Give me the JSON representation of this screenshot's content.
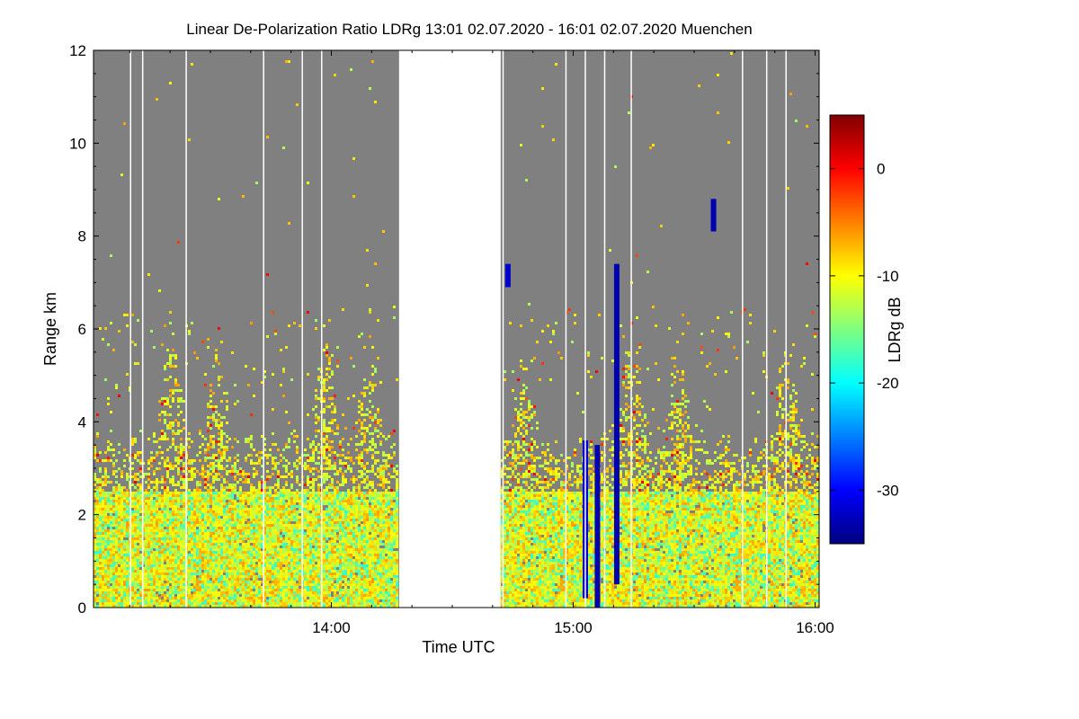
{
  "chart_data": {
    "type": "heatmap",
    "title": "Linear De-Polarization Ratio LDRg   13:01 02.07.2020 - 16:01 02.07.2020 Muenchen",
    "xlabel": "Time UTC",
    "ylabel": "Range km",
    "x_range_hours": [
      13.0167,
      16.0167
    ],
    "y_range_km": [
      0,
      12
    ],
    "x_ticks": [
      {
        "label": "14:00",
        "value": 14.0
      },
      {
        "label": "15:00",
        "value": 15.0
      },
      {
        "label": "16:00",
        "value": 16.0
      }
    ],
    "y_ticks": [
      {
        "label": "0",
        "value": 0
      },
      {
        "label": "2",
        "value": 2
      },
      {
        "label": "4",
        "value": 4
      },
      {
        "label": "6",
        "value": 6
      },
      {
        "label": "8",
        "value": 8
      },
      {
        "label": "10",
        "value": 10
      },
      {
        "label": "12",
        "value": 12
      }
    ],
    "colorbar": {
      "label": "LDRg dB",
      "range": [
        -35,
        5
      ],
      "ticks": [
        {
          "label": "0",
          "value": 0
        },
        {
          "label": "-10",
          "value": -10
        },
        {
          "label": "-20",
          "value": -20
        },
        {
          "label": "-30",
          "value": -30
        }
      ],
      "colormap": [
        "#000080",
        "#0000ff",
        "#0080ff",
        "#00ffff",
        "#80ff80",
        "#ffff00",
        "#ff8000",
        "#ff0000",
        "#800000"
      ]
    },
    "no_signal_color": "#808080",
    "data_gap_hours": [
      14.28,
      14.7
    ],
    "typical_cloud_top_km": 2.5,
    "max_signal_height_km": 6.5,
    "dominant_ldr_db": -10,
    "low_ldr_features": [
      {
        "time_hours": 15.05,
        "range_km": [
          0.2,
          3.6
        ],
        "ldr_db": -32
      },
      {
        "time_hours": 15.1,
        "range_km": [
          0.0,
          3.5
        ],
        "ldr_db": -33
      },
      {
        "time_hours": 15.18,
        "range_km": [
          0.5,
          7.4
        ],
        "ldr_db": -33
      },
      {
        "time_hours": 15.58,
        "range_km": [
          8.1,
          8.8
        ],
        "ldr_db": -33
      },
      {
        "time_hours": 14.73,
        "range_km": [
          6.9,
          7.4
        ],
        "ldr_db": -32
      }
    ]
  }
}
